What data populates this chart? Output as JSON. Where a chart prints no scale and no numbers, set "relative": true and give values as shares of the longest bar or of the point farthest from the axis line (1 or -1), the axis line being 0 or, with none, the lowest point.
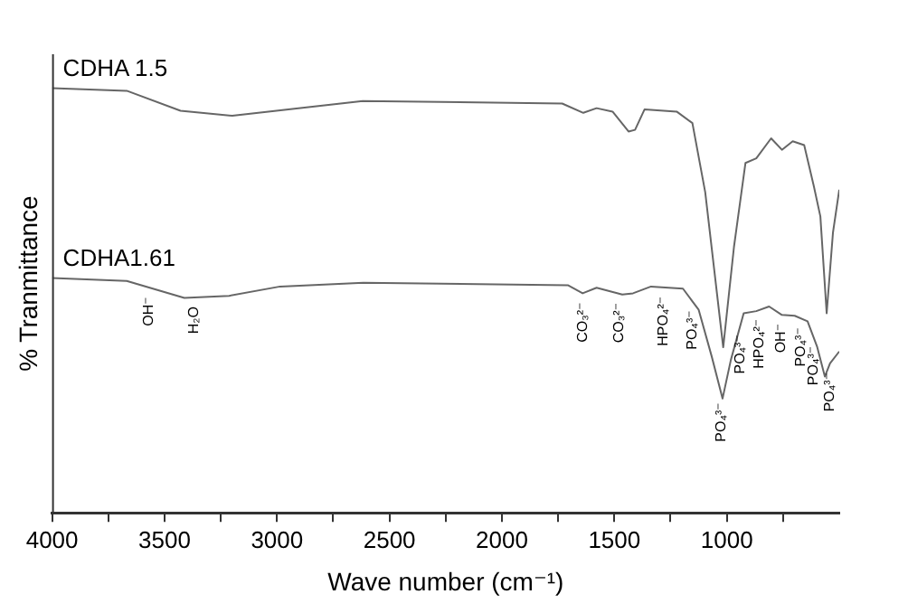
{
  "chart_data": {
    "type": "line",
    "relative": true,
    "xlabel": "Wave number (cm⁻¹)",
    "ylabel": "% Tranmittance",
    "legend": false,
    "grid": false,
    "marker": "none",
    "line_style": "solid",
    "xlim": [
      4000,
      500
    ],
    "xticks": [
      4000,
      {
        "value": 3750,
        "label": null
      },
      3500,
      {
        "value": 3250,
        "label": null
      },
      3000,
      {
        "value": 2750,
        "label": null
      },
      2500,
      {
        "value": 2250,
        "label": null
      },
      2000,
      {
        "value": 1750,
        "label": null
      },
      1500,
      {
        "value": 1250,
        "label": null
      },
      1000,
      {
        "value": 750,
        "label": null
      }
    ],
    "series": [
      {
        "name": "CDHA 1.5",
        "color": "#666666",
        "x": [
          4000,
          3668,
          3429,
          3199,
          2619,
          1732,
          1638,
          1579,
          1508,
          1437,
          1408,
          1366,
          1223,
          1153,
          1096,
          1016,
          968,
          917,
          869,
          803,
          755,
          707,
          656,
          613,
          584,
          556,
          528,
          500
        ],
        "values": [
          1.0,
          0.994,
          0.947,
          0.935,
          0.97,
          0.964,
          0.942,
          0.953,
          0.945,
          0.898,
          0.902,
          0.95,
          0.945,
          0.918,
          0.755,
          0.39,
          0.627,
          0.824,
          0.835,
          0.882,
          0.855,
          0.875,
          0.866,
          0.769,
          0.698,
          0.47,
          0.66,
          0.761
        ]
      },
      {
        "name": "CDHA1.61",
        "color": "#666666",
        "x": [
          4000,
          3668,
          3412,
          3213,
          2986,
          2616,
          1707,
          1641,
          1579,
          1465,
          1417,
          1337,
          1195,
          1125,
          1067,
          1019,
          982,
          925,
          869,
          812,
          755,
          698,
          641,
          599,
          564,
          541,
          500
        ],
        "values": [
          0.553,
          0.546,
          0.506,
          0.511,
          0.533,
          0.542,
          0.536,
          0.517,
          0.53,
          0.514,
          0.517,
          0.533,
          0.528,
          0.478,
          0.368,
          0.269,
          0.36,
          0.47,
          0.475,
          0.486,
          0.466,
          0.464,
          0.451,
          0.392,
          0.321,
          0.352,
          0.38
        ]
      }
    ],
    "annotations": [
      {
        "text": "OH⁻",
        "x": 3568,
        "y": 0.53
      },
      {
        "text": "H₂O",
        "x": 3370,
        "y": 0.507
      },
      {
        "text": "CO₃²⁻",
        "x": 1638,
        "y": 0.517
      },
      {
        "text": "CO₃²⁻",
        "x": 1477,
        "y": 0.516
      },
      {
        "text": "HPO₄²⁻",
        "x": 1281,
        "y": 0.531
      },
      {
        "text": "PO₄³⁻",
        "x": 1153,
        "y": 0.498
      },
      {
        "text": "PO₄³⁻",
        "x": 1025,
        "y": 0.281
      },
      {
        "text": "PO₄³⁻",
        "x": 940,
        "y": 0.441
      },
      {
        "text": "HPO₄²⁻",
        "x": 855,
        "y": 0.478
      },
      {
        "text": "OH⁻",
        "x": 760,
        "y": 0.467
      },
      {
        "text": "PO₄³⁻",
        "x": 670,
        "y": 0.458
      },
      {
        "text": "PO₄³⁻",
        "x": 615,
        "y": 0.414
      },
      {
        "text": "PO₄³⁻",
        "x": 540,
        "y": 0.352
      }
    ]
  }
}
